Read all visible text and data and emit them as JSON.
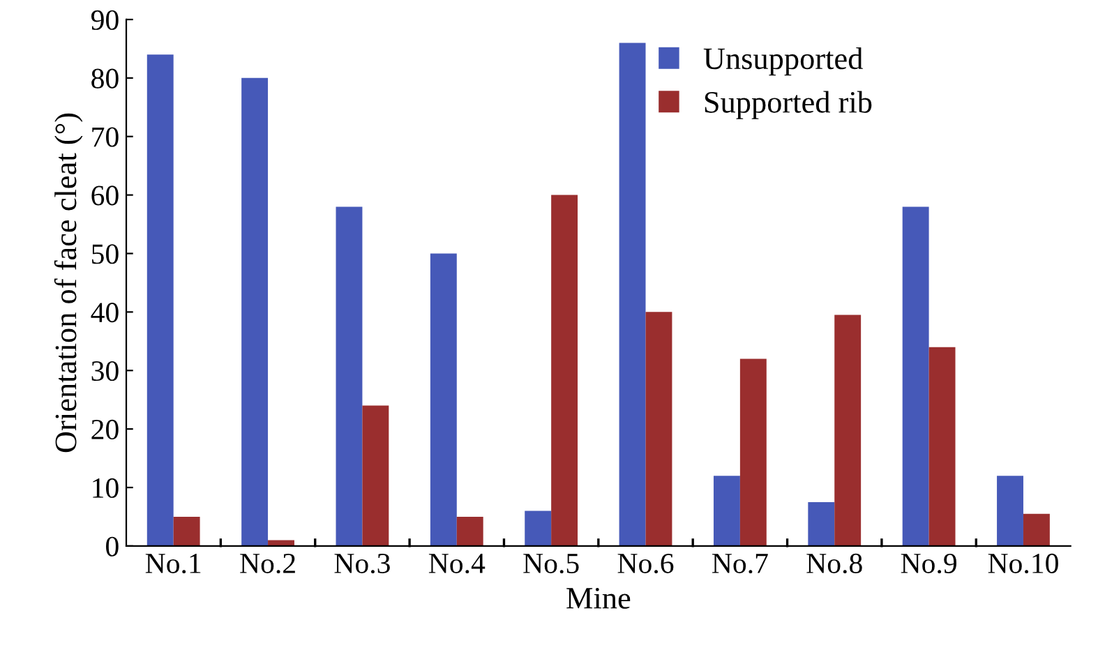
{
  "chart_data": {
    "type": "bar",
    "xlabel": "Mine",
    "ylabel": "Orientation of face cleat (°)",
    "categories": [
      "No.1",
      "No.2",
      "No.3",
      "No.4",
      "No.5",
      "No.6",
      "No.7",
      "No.8",
      "No.9",
      "No.10"
    ],
    "series": [
      {
        "name": "Unsupported",
        "color": "#4659b8",
        "values": [
          84,
          80,
          58,
          50,
          6,
          86,
          12,
          7.5,
          58,
          12
        ]
      },
      {
        "name": "Supported rib",
        "color": "#9a2e2e",
        "values": [
          5,
          1,
          24,
          5,
          60,
          40,
          32,
          39.5,
          34,
          5.5
        ]
      }
    ],
    "ylim": [
      0,
      90
    ],
    "yticks": [
      0,
      10,
      20,
      30,
      40,
      50,
      60,
      70,
      80,
      90
    ],
    "grid": false,
    "legend": "top right"
  }
}
